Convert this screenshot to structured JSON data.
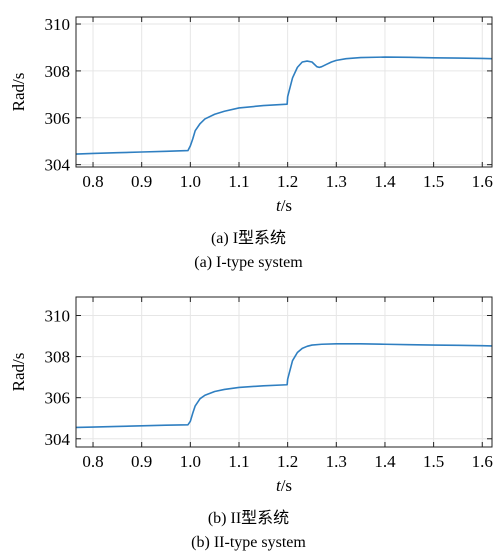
{
  "chart_data": [
    {
      "type": "line",
      "caption_cn": "(a) I型系统",
      "caption_en": "(a) I-type system",
      "xlabel": "t/s",
      "ylabel": "Rad/s",
      "xlim": [
        0.765,
        1.62
      ],
      "ylim": [
        303.9,
        310.3
      ],
      "xticks": [
        0.8,
        0.9,
        1.0,
        1.1,
        1.2,
        1.3,
        1.4,
        1.5,
        1.6
      ],
      "xtick_labels": [
        "0.8",
        "0.9",
        "1.0",
        "1.1",
        "1.2",
        "1.3",
        "1.4",
        "1.5",
        "1.6"
      ],
      "yticks": [
        304,
        306,
        308,
        310
      ],
      "ytick_labels": [
        "304",
        "306",
        "308",
        "310"
      ],
      "grid": true,
      "color": "#2f7fc1",
      "series": [
        {
          "x": [
            0.765,
            0.8,
            0.85,
            0.9,
            0.95,
            0.995,
            1.0,
            1.005,
            1.01,
            1.02,
            1.03,
            1.05,
            1.07,
            1.1,
            1.15,
            1.199,
            1.2,
            1.205,
            1.21,
            1.22,
            1.23,
            1.24,
            1.25,
            1.26,
            1.265,
            1.27,
            1.28,
            1.29,
            1.3,
            1.32,
            1.35,
            1.4,
            1.45,
            1.5,
            1.55,
            1.6,
            1.62
          ],
          "y": [
            304.45,
            304.48,
            304.51,
            304.54,
            304.57,
            304.6,
            304.8,
            305.1,
            305.45,
            305.75,
            305.95,
            306.15,
            306.28,
            306.42,
            306.52,
            306.58,
            306.9,
            307.3,
            307.7,
            308.15,
            308.38,
            308.42,
            308.38,
            308.18,
            308.15,
            308.18,
            308.28,
            308.38,
            308.45,
            308.52,
            308.57,
            308.59,
            308.58,
            308.56,
            308.55,
            308.53,
            308.52
          ]
        }
      ]
    },
    {
      "type": "line",
      "caption_cn": "(b) II型系统",
      "caption_en": "(b) II-type system",
      "xlabel": "t/s",
      "ylabel": "Rad/s",
      "xlim": [
        0.765,
        1.62
      ],
      "ylim": [
        303.6,
        310.9
      ],
      "xticks": [
        0.8,
        0.9,
        1.0,
        1.1,
        1.2,
        1.3,
        1.4,
        1.5,
        1.6
      ],
      "xtick_labels": [
        "0.8",
        "0.9",
        "1.0",
        "1.1",
        "1.2",
        "1.3",
        "1.4",
        "1.5",
        "1.6"
      ],
      "yticks": [
        304,
        306,
        308,
        310
      ],
      "ytick_labels": [
        "304",
        "306",
        "308",
        "310"
      ],
      "grid": true,
      "color": "#2f7fc1",
      "series": [
        {
          "x": [
            0.765,
            0.8,
            0.85,
            0.9,
            0.95,
            0.995,
            1.0,
            1.005,
            1.01,
            1.02,
            1.03,
            1.05,
            1.07,
            1.1,
            1.15,
            1.199,
            1.2,
            1.205,
            1.21,
            1.22,
            1.23,
            1.24,
            1.25,
            1.27,
            1.3,
            1.35,
            1.4,
            1.45,
            1.5,
            1.55,
            1.6,
            1.62
          ],
          "y": [
            304.55,
            304.57,
            304.6,
            304.63,
            304.66,
            304.68,
            304.85,
            305.25,
            305.6,
            305.95,
            306.12,
            306.3,
            306.4,
            306.5,
            306.58,
            306.63,
            306.9,
            307.35,
            307.8,
            308.2,
            308.4,
            308.5,
            308.56,
            308.6,
            308.62,
            308.62,
            308.6,
            308.58,
            308.56,
            308.55,
            308.53,
            308.52
          ]
        }
      ]
    }
  ]
}
